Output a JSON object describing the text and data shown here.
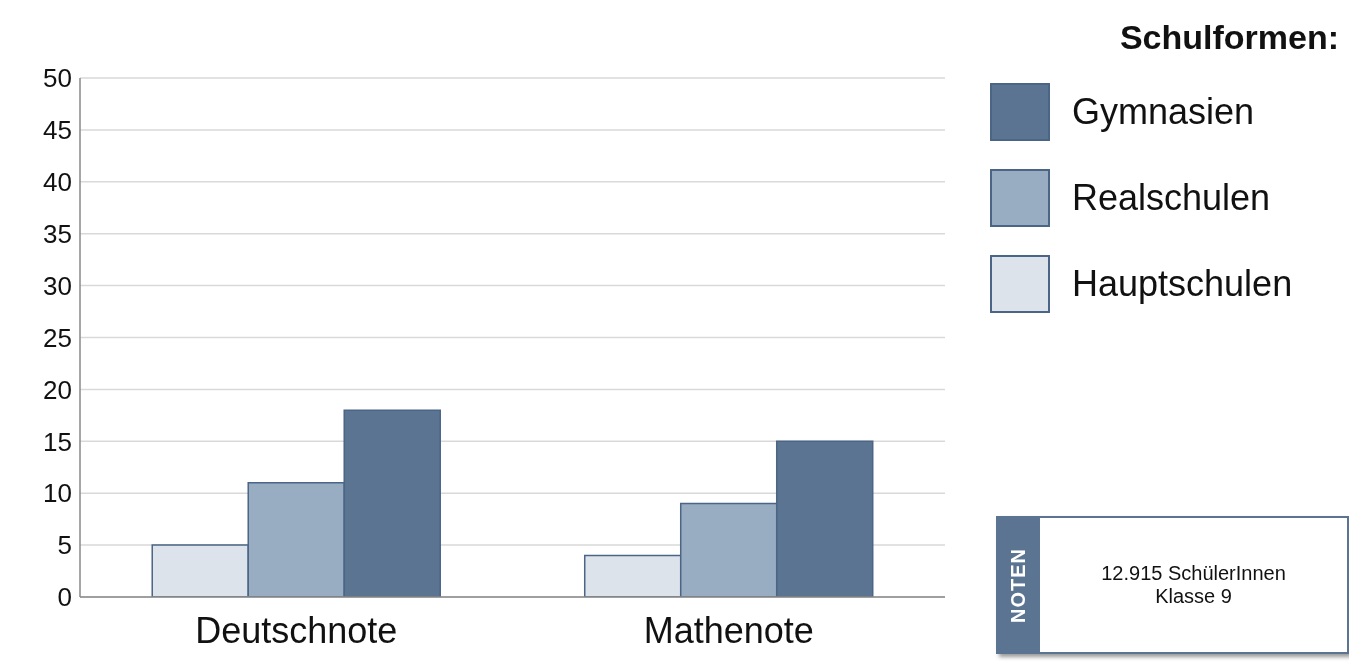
{
  "chart_data": {
    "type": "bar",
    "legend_title": "Schulformen:",
    "categories": [
      "Deutschnote",
      "Mathenote"
    ],
    "series": [
      {
        "name": "Hauptschulen",
        "color": "#dce3eb",
        "values": [
          5,
          4
        ]
      },
      {
        "name": "Realschulen",
        "color": "#98adc2",
        "values": [
          11,
          9
        ]
      },
      {
        "name": "Gymnasien",
        "color": "#5a7491",
        "values": [
          18,
          15
        ]
      }
    ],
    "ylim": [
      0,
      50
    ],
    "yticks": [
      0,
      5,
      10,
      15,
      20,
      25,
      30,
      35,
      40,
      45,
      50
    ],
    "grid": "y",
    "legend": "right",
    "annotations": [
      "NOTEN",
      "12.915 SchülerInnen",
      "Klasse 9"
    ]
  }
}
